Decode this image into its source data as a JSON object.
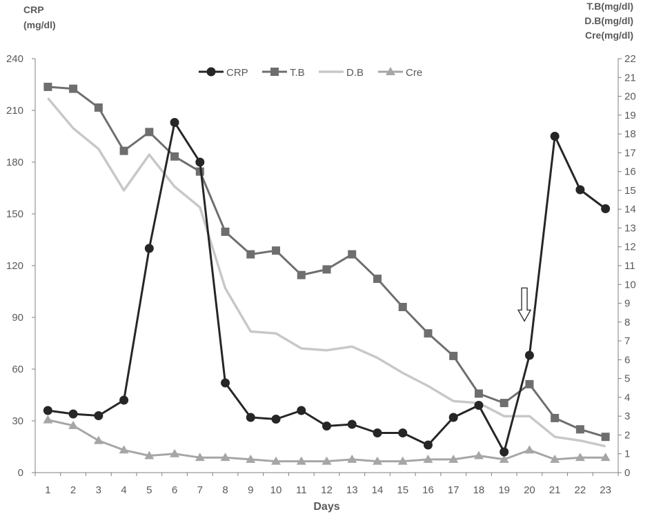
{
  "chart_data": {
    "type": "line",
    "title": "",
    "xlabel": "Days",
    "y_left_label_lines": [
      "CRP",
      "(mg/dl)"
    ],
    "y_right_label_lines": [
      "T.B(mg/dl)",
      "D.B(mg/dl)",
      "Cre(mg/dl)"
    ],
    "x": [
      1,
      2,
      3,
      4,
      5,
      6,
      7,
      8,
      9,
      10,
      11,
      12,
      13,
      14,
      15,
      16,
      17,
      18,
      19,
      20,
      21,
      22,
      23
    ],
    "y_left_lim": [
      0,
      240
    ],
    "y_left_ticks": [
      0,
      30,
      60,
      90,
      120,
      150,
      180,
      210,
      240
    ],
    "y_right_lim": [
      0,
      22
    ],
    "y_right_ticks": [
      0,
      1,
      2,
      3,
      4,
      5,
      6,
      7,
      8,
      9,
      10,
      11,
      12,
      13,
      14,
      15,
      16,
      17,
      18,
      19,
      20,
      21,
      22
    ],
    "grid": false,
    "legend_position": "top-center",
    "series": [
      {
        "name": "CRP",
        "axis": "left",
        "marker": "circle",
        "color": "#262626",
        "values": [
          36,
          34,
          33,
          42,
          130,
          203,
          180,
          52,
          32,
          31,
          36,
          27,
          28,
          23,
          23,
          16,
          32,
          39,
          12,
          68,
          195,
          164,
          153
        ]
      },
      {
        "name": "T.B",
        "axis": "right",
        "marker": "square",
        "color": "#6e6e6e",
        "values": [
          20.5,
          20.4,
          19.4,
          17.1,
          18.1,
          16.8,
          16.0,
          12.8,
          11.6,
          11.8,
          10.5,
          10.8,
          11.6,
          10.3,
          8.8,
          7.4,
          6.2,
          4.2,
          3.7,
          4.7,
          2.9,
          2.3,
          1.9
        ]
      },
      {
        "name": "D.B",
        "axis": "right",
        "marker": "line",
        "color": "#c8c8c8",
        "values": [
          19.9,
          18.3,
          17.2,
          15.0,
          16.9,
          15.2,
          14.1,
          9.8,
          7.5,
          7.4,
          6.6,
          6.5,
          6.7,
          6.1,
          5.3,
          4.6,
          3.8,
          3.7,
          3.0,
          3.0,
          1.9,
          1.7,
          1.4
        ]
      },
      {
        "name": "Cre",
        "axis": "right",
        "marker": "triangle",
        "color": "#a6a6a6",
        "values": [
          2.8,
          2.5,
          1.7,
          1.2,
          0.9,
          1.0,
          0.8,
          0.8,
          0.7,
          0.6,
          0.6,
          0.6,
          0.7,
          0.6,
          0.6,
          0.7,
          0.7,
          0.9,
          0.7,
          1.2,
          0.7,
          0.8,
          0.8
        ]
      }
    ],
    "annotations": [
      {
        "type": "down-arrow",
        "x": 19.8,
        "y_right": 8.2
      }
    ]
  }
}
